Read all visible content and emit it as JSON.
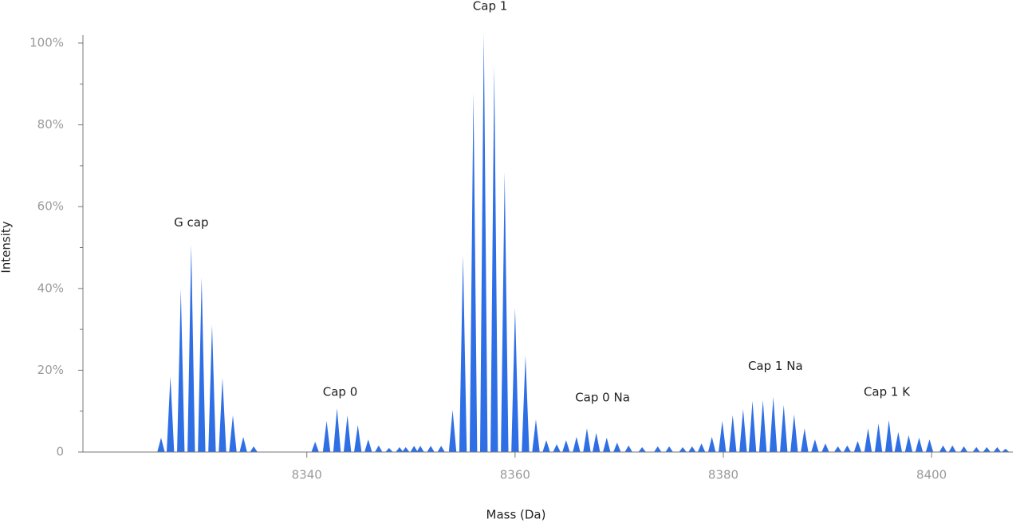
{
  "chart_data": {
    "type": "spectrum",
    "x_label": "Mass (Da)",
    "y_label": "Intensity",
    "color": "#2f6fe6",
    "xlim": [
      8318.5,
      8407.8
    ],
    "ylim": [
      0,
      100
    ],
    "xticks": [
      8340,
      8360,
      8380,
      8400
    ],
    "yticks": [
      0,
      {
        "value": 20,
        "label": "20%"
      },
      {
        "value": 40,
        "label": "40%"
      },
      {
        "value": 60,
        "label": "60%"
      },
      {
        "value": 80,
        "label": "80%"
      },
      {
        "value": 100,
        "label": "100%"
      }
    ],
    "yminor_ticks": [
      10,
      30,
      50,
      70,
      90
    ],
    "x": [
      8326.0,
      8326.9,
      8327.9,
      8328.9,
      8329.9,
      8330.9,
      8331.9,
      8332.9,
      8333.9,
      8334.9,
      8340.8,
      8341.9,
      8342.9,
      8343.9,
      8344.9,
      8345.9,
      8346.9,
      8347.9,
      8348.9,
      8349.5,
      8350.3,
      8350.9,
      8351.9,
      8352.9,
      8354.0,
      8355.0,
      8356.0,
      8357.0,
      8358.0,
      8359.0,
      8360.0,
      8361.0,
      8362.0,
      8363.0,
      8364.0,
      8364.9,
      8365.9,
      8366.9,
      8367.8,
      8368.8,
      8369.8,
      8370.9,
      8372.2,
      8373.7,
      8374.8,
      8376.1,
      8377.0,
      8377.9,
      8378.9,
      8379.9,
      8380.9,
      8381.9,
      8382.8,
      8383.8,
      8384.8,
      8385.8,
      8386.8,
      8387.8,
      8388.8,
      8389.8,
      8391.0,
      8391.9,
      8392.9,
      8393.9,
      8394.9,
      8395.9,
      8396.8,
      8397.8,
      8398.8,
      8399.8,
      8401.1,
      8402.0,
      8403.1,
      8404.3,
      8405.3,
      8406.3,
      8407.1
    ],
    "values": [
      3.5,
      18.5,
      39.8,
      50.7,
      42.7,
      31.2,
      18.1,
      9.0,
      3.7,
      1.4,
      2.5,
      7.6,
      10.7,
      9.0,
      6.6,
      3.1,
      1.6,
      1.0,
      1.2,
      1.2,
      1.5,
      1.5,
      1.5,
      1.5,
      10.3,
      48.1,
      87.9,
      102.3,
      94.2,
      68.4,
      35.3,
      23.6,
      8.0,
      2.9,
      1.9,
      2.9,
      3.7,
      5.8,
      4.7,
      3.5,
      2.3,
      1.6,
      1.2,
      1.4,
      1.4,
      1.2,
      1.4,
      2.1,
      3.7,
      7.6,
      9.0,
      10.5,
      12.5,
      12.7,
      13.5,
      11.5,
      9.2,
      5.8,
      3.1,
      2.1,
      1.4,
      1.6,
      2.7,
      5.8,
      7.0,
      7.8,
      4.9,
      4.1,
      3.5,
      3.1,
      1.6,
      1.6,
      1.4,
      1.2,
      1.2,
      1.2,
      0.8
    ],
    "annotations": [
      {
        "text": "G cap",
        "x": 8328.9,
        "y": 56
      },
      {
        "text": "Cap 0",
        "x": 8343.2,
        "y": 14.6
      },
      {
        "text": "Cap 1",
        "x": 8357.6,
        "y": 109
      },
      {
        "text": "Cap 0 Na",
        "x": 8368.4,
        "y": 13.3
      },
      {
        "text": "Cap 1 Na",
        "x": 8385.0,
        "y": 21
      },
      {
        "text": "Cap 1 K",
        "x": 8395.7,
        "y": 14.6
      }
    ]
  }
}
